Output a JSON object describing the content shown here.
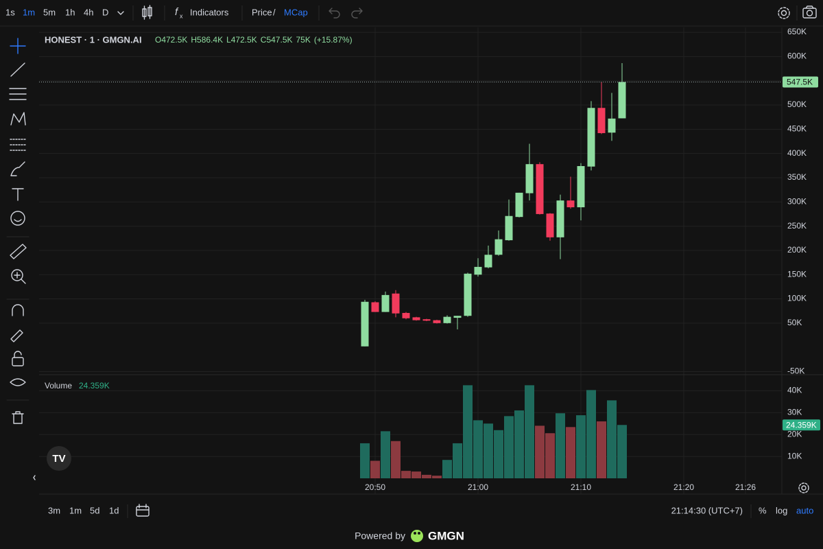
{
  "toolbar": {
    "intervals": [
      "1s",
      "1m",
      "5m",
      "1h",
      "4h",
      "D"
    ],
    "indicators": "Indicators",
    "price": "Price",
    "separator": "/",
    "mcap": "MCap"
  },
  "chart_data": [
    {
      "type": "candlestick",
      "title": "HONEST · 1 · GMGN.AI",
      "legend_values": [
        "O472.5K",
        "H586.4K",
        "L472.5K",
        "C547.5K",
        "75K",
        "(+15.87%)"
      ],
      "x": [
        "20:49",
        "20:50",
        "20:51",
        "20:52",
        "20:53",
        "20:54",
        "20:55",
        "20:56",
        "20:57",
        "20:58",
        "20:59",
        "21:00",
        "21:01",
        "21:02",
        "21:03",
        "21:04",
        "21:05",
        "21:06",
        "21:07",
        "21:08",
        "21:09",
        "21:10",
        "21:11",
        "21:12",
        "21:13",
        "21:14"
      ],
      "open": [
        2,
        93,
        73,
        111,
        71,
        62,
        58,
        56,
        50,
        61,
        65,
        150,
        165,
        191,
        221,
        269,
        318,
        378,
        276,
        227,
        303,
        289,
        373,
        494,
        443,
        472.5
      ],
      "high": [
        98,
        95,
        115,
        118,
        73,
        63,
        59,
        57,
        66,
        65,
        154,
        184,
        210,
        241,
        305,
        319,
        420,
        382,
        277,
        315,
        352,
        380,
        508,
        547,
        525,
        586.4
      ],
      "low": [
        2,
        73,
        73,
        62,
        58,
        55,
        54,
        49,
        49,
        37,
        63,
        146,
        163,
        189,
        220,
        268,
        303,
        274,
        220,
        182,
        286,
        262,
        365,
        440,
        426,
        472.5
      ],
      "close": [
        94,
        73,
        108,
        70,
        60,
        56,
        55,
        50,
        63,
        65,
        152,
        166,
        191,
        223,
        271,
        319,
        378,
        275,
        227,
        303,
        289,
        374,
        494,
        442,
        472,
        547.5
      ],
      "up_color": "#8fdca0",
      "down_color": "#f23b5c",
      "xlim": [
        "20:17",
        "21:30"
      ],
      "ylim": [
        -55,
        660
      ],
      "yticks": [
        {
          "value": -50,
          "label": "-50K"
        },
        {
          "value": 50,
          "label": "50K"
        },
        {
          "value": 100,
          "label": "100K"
        },
        {
          "value": 150,
          "label": "150K"
        },
        {
          "value": 200,
          "label": "200K"
        },
        {
          "value": 250,
          "label": "250K"
        },
        {
          "value": 300,
          "label": "300K"
        },
        {
          "value": 350,
          "label": "350K"
        },
        {
          "value": 400,
          "label": "400K"
        },
        {
          "value": 450,
          "label": "450K"
        },
        {
          "value": 500,
          "label": "500K"
        },
        {
          "value": 550,
          "label": "550K"
        },
        {
          "value": 600,
          "label": "600K"
        },
        {
          "value": 650,
          "label": "650K"
        }
      ],
      "last_price_label": "547.5K",
      "grid": true
    },
    {
      "type": "bar",
      "title": "Volume",
      "current_label": "24.359K",
      "x": [
        "20:49",
        "20:50",
        "20:51",
        "20:52",
        "20:53",
        "20:54",
        "20:55",
        "20:56",
        "20:57",
        "20:58",
        "20:59",
        "21:00",
        "21:01",
        "21:02",
        "21:03",
        "21:04",
        "21:05",
        "21:06",
        "21:07",
        "21:08",
        "21:09",
        "21:10",
        "21:11",
        "21:12",
        "21:13",
        "21:14"
      ],
      "values": [
        16,
        8,
        21.5,
        17,
        3.4,
        3.1,
        1.6,
        1.2,
        8.4,
        16,
        42.5,
        26.5,
        25,
        22,
        28.4,
        31,
        42.5,
        24,
        20.6,
        29.7,
        23.4,
        28.8,
        40.3,
        26,
        35.6,
        24.359
      ],
      "up_color": "#1f6b5d",
      "down_color": "#8c3a40",
      "xlim": [
        "20:17",
        "21:30"
      ],
      "xticks": [
        "20:50",
        "21:00",
        "21:10",
        "21:20",
        "21:26"
      ],
      "ylim": [
        0,
        47
      ],
      "yticks": [
        {
          "value": 10,
          "label": "10K"
        },
        {
          "value": 20,
          "label": "20K"
        },
        {
          "value": 30,
          "label": "30K"
        },
        {
          "value": 40,
          "label": "40K"
        }
      ],
      "grid": true
    }
  ],
  "bottom_bar": {
    "ranges": [
      "3m",
      "1m",
      "5d",
      "1d"
    ],
    "clock": "21:14:30 (UTC+7)",
    "percent": "%",
    "log": "log",
    "auto": "auto"
  },
  "footer": {
    "powered_by": "Powered by",
    "brand": "GMGN"
  }
}
